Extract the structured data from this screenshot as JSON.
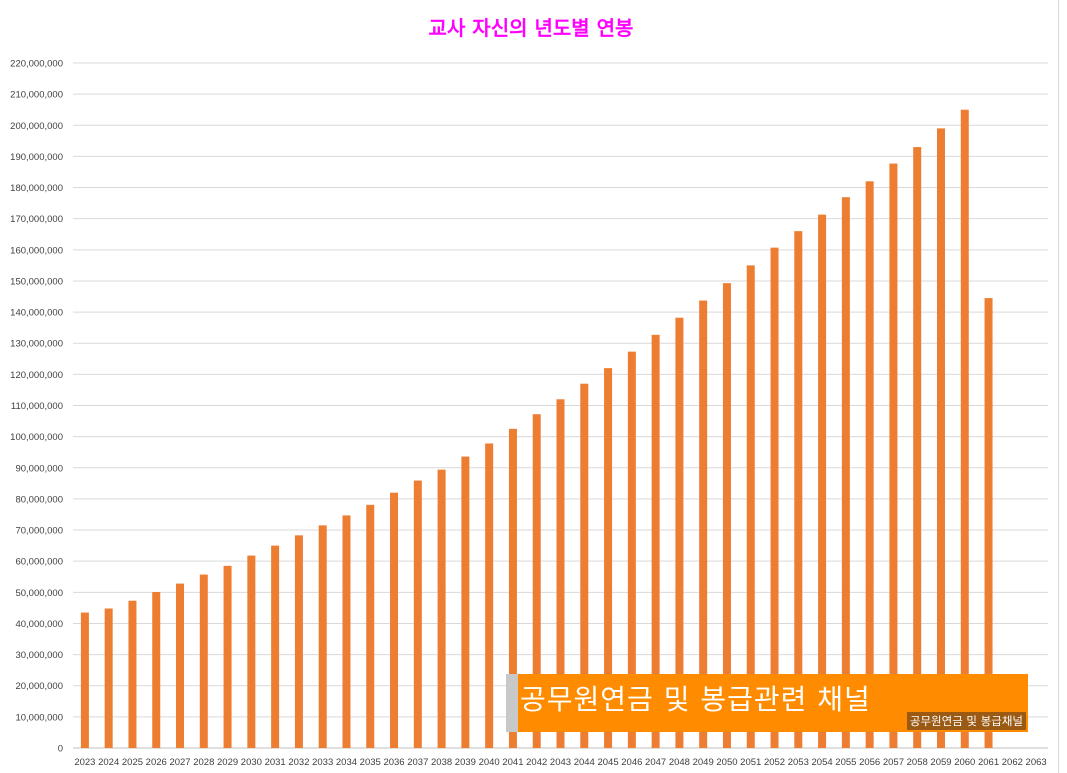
{
  "chart_data": {
    "type": "bar",
    "title": "교사 자신의 년도별 연봉",
    "xlabel": "",
    "ylabel": "",
    "ylim": [
      0,
      220000000
    ],
    "yticks": [
      "0",
      "10,000,000",
      "20,000,000",
      "30,000,000",
      "40,000,000",
      "50,000,000",
      "60,000,000",
      "70,000,000",
      "80,000,000",
      "90,000,000",
      "100,000,000",
      "110,000,000",
      "120,000,000",
      "130,000,000",
      "140,000,000",
      "150,000,000",
      "160,000,000",
      "170,000,000",
      "180,000,000",
      "190,000,000",
      "200,000,000",
      "210,000,000",
      "220,000,000"
    ],
    "grid": true,
    "bar_color": "#ed7d31",
    "categories": [
      "2023",
      "2024",
      "2025",
      "2026",
      "2027",
      "2028",
      "2029",
      "2030",
      "2031",
      "2032",
      "2033",
      "2034",
      "2035",
      "2036",
      "2037",
      "2038",
      "2039",
      "2040",
      "2041",
      "2042",
      "2043",
      "2044",
      "2045",
      "2046",
      "2047",
      "2048",
      "2049",
      "2050",
      "2051",
      "2052",
      "2053",
      "2054",
      "2055",
      "2056",
      "2057",
      "2058",
      "2059",
      "2060",
      "2061",
      "2062",
      "2063"
    ],
    "values": [
      43500000,
      44800000,
      47300000,
      50100000,
      52800000,
      55700000,
      58500000,
      61800000,
      65000000,
      68300000,
      71500000,
      74700000,
      78100000,
      82000000,
      85900000,
      89400000,
      93600000,
      97800000,
      102500000,
      107200000,
      112000000,
      117000000,
      122000000,
      127300000,
      132700000,
      138200000,
      143700000,
      149300000,
      155000000,
      160700000,
      166000000,
      171300000,
      176900000,
      182000000,
      187700000,
      193000000,
      199000000,
      205000000,
      144500000,
      0,
      0
    ]
  },
  "watermark": {
    "main": "공무원연금 및 봉급관련 채널",
    "sub": "공무원연금 및 봉급채널"
  }
}
